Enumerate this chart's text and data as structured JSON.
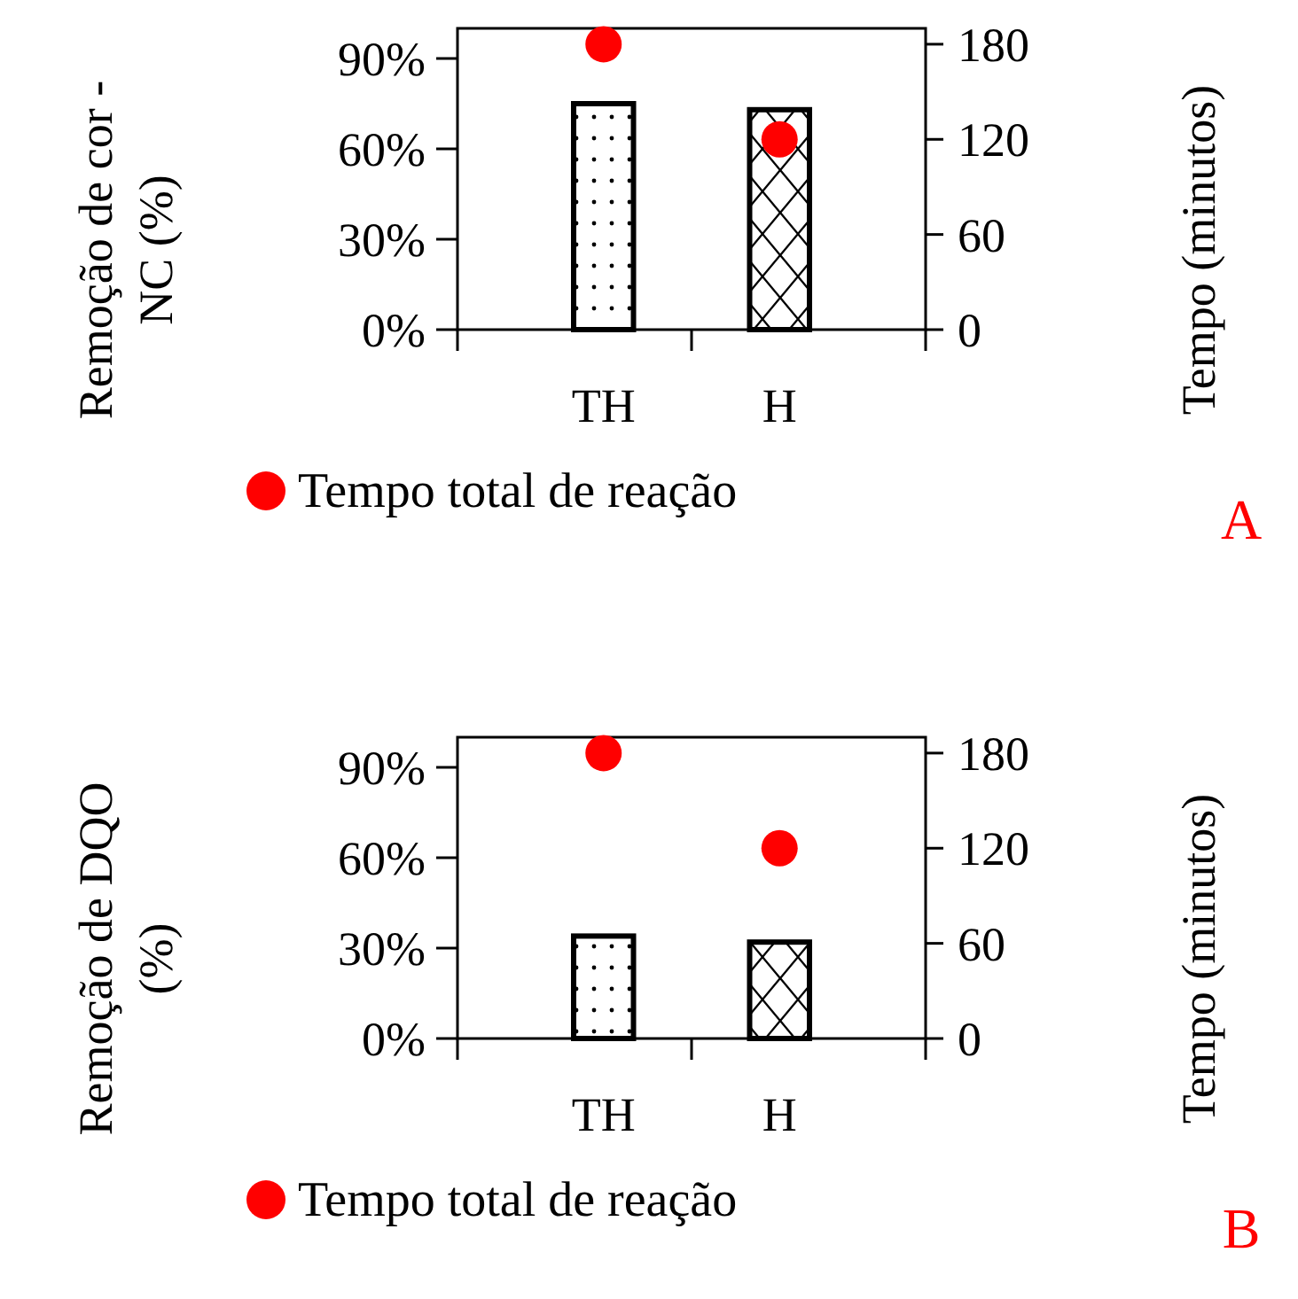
{
  "chart_data": [
    {
      "type": "bar",
      "ylabel": "Remoção de cor - NC (%)",
      "y2label": "Tempo (minutos)",
      "categories": [
        "TH",
        "H"
      ],
      "annotations": [
        "A"
      ],
      "series": [
        {
          "colors": [
            "#000000",
            "#000000"
          ],
          "values": [
            75,
            73
          ]
        },
        {
          "type": "scatter",
          "name": "Tempo total de reação",
          "color": "#ff0000",
          "axis": "y2",
          "values": [
            180,
            120
          ]
        }
      ],
      "ylim": [
        0,
        100
      ],
      "yticks": [
        {
          "value": 0,
          "label": "0%"
        },
        {
          "value": 30,
          "label": "30%"
        },
        {
          "value": 60,
          "label": "60%"
        },
        {
          "value": 90,
          "label": "90%"
        }
      ],
      "y2lim": [
        0,
        190
      ],
      "y2ticks": [
        0,
        60,
        120,
        180
      ],
      "legend": "bottom",
      "grid": false,
      "marker": "circle"
    },
    {
      "type": "bar",
      "ylabel": "Remoção de DQO (%)",
      "y2label": "Tempo (minutos)",
      "categories": [
        "TH",
        "H"
      ],
      "annotations": [
        "B"
      ],
      "series": [
        {
          "colors": [
            "#000000",
            "#000000"
          ],
          "values": [
            34,
            32
          ]
        },
        {
          "type": "scatter",
          "name": "Tempo total de reação",
          "color": "#ff0000",
          "axis": "y2",
          "values": [
            180,
            120
          ]
        }
      ],
      "ylim": [
        0,
        100
      ],
      "yticks": [
        {
          "value": 0,
          "label": "0%"
        },
        {
          "value": 30,
          "label": "30%"
        },
        {
          "value": 60,
          "label": "60%"
        },
        {
          "value": 90,
          "label": "90%"
        }
      ],
      "y2lim": [
        0,
        190
      ],
      "y2ticks": [
        0,
        60,
        120,
        180
      ],
      "legend": "bottom",
      "grid": false,
      "marker": "circle"
    }
  ]
}
